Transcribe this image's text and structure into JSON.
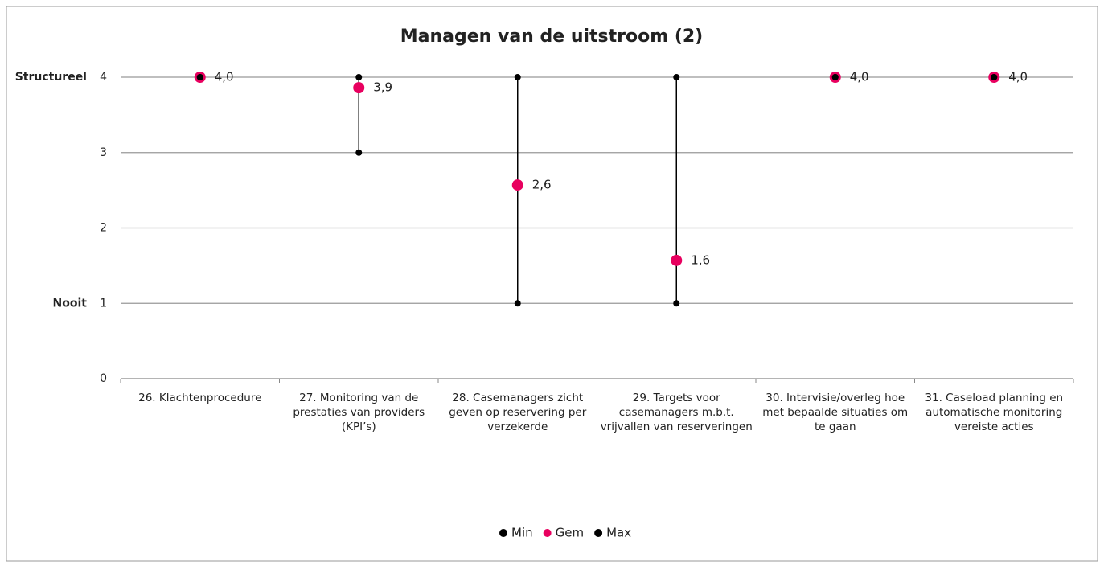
{
  "chart_data": {
    "type": "range-dot",
    "title": "Managen van de uitstroom (2)",
    "categories": [
      "26. Klachtenprocedure",
      "27. Monitoring van de prestaties van providers (KPI’s)",
      "28. Casemanagers zicht geven op reservering per verzekerde",
      "29. Targets voor casemanagers m.b.t. vrijvallen van reserveringen",
      "30. Intervisie/overleg hoe met bepaalde situaties om te gaan",
      "31. Caseload planning en automatische monitoring vereiste acties"
    ],
    "series": [
      {
        "name": "Min",
        "color": "#000000",
        "values": [
          4,
          3,
          1,
          1,
          4,
          4
        ]
      },
      {
        "name": "Gem",
        "color": "#e8005f",
        "values": [
          4.0,
          3.86,
          2.57,
          1.57,
          4.0,
          4.0
        ],
        "value_labels": [
          "4,0",
          "3,9",
          "2,6",
          "1,6",
          "4,0",
          "4,0"
        ]
      },
      {
        "name": "Max",
        "color": "#000000",
        "values": [
          4,
          4,
          4,
          4,
          4,
          4
        ]
      }
    ],
    "ylim": [
      0,
      4
    ],
    "yticks": [
      0,
      1,
      2,
      3,
      4
    ],
    "grid": true,
    "y_annotations": [
      {
        "value": 4,
        "label": "Structureel"
      },
      {
        "value": 1,
        "label": "Nooit"
      }
    ],
    "legend": "bottom"
  }
}
